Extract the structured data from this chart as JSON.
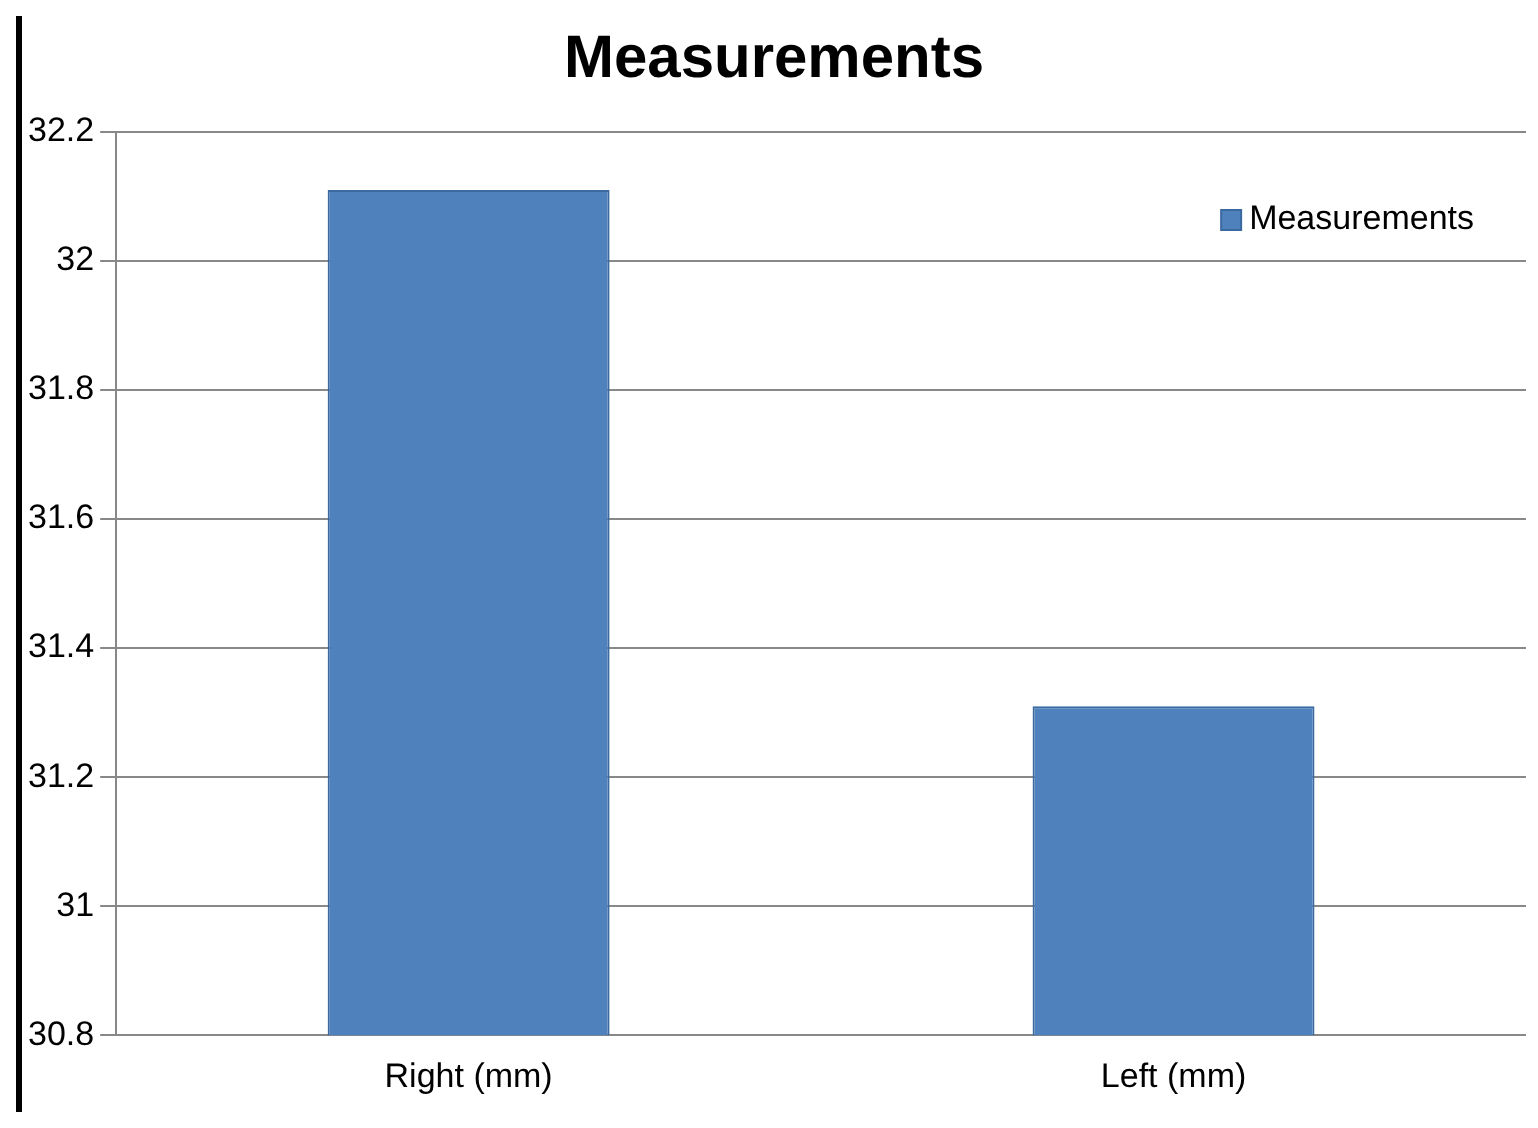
{
  "chart_data": {
    "type": "bar",
    "title": "Measurements",
    "categories": [
      "Right (mm)",
      "Left (mm)"
    ],
    "series": [
      {
        "name": "Measurements",
        "color": "#4f81bd",
        "values": [
          32.11,
          31.31
        ]
      }
    ],
    "ylim": [
      30.8,
      32.2
    ],
    "yticks": [
      30.8,
      31,
      31.2,
      31.4,
      31.6,
      31.8,
      32,
      32.2
    ],
    "grid": "y",
    "legend": "top right"
  }
}
